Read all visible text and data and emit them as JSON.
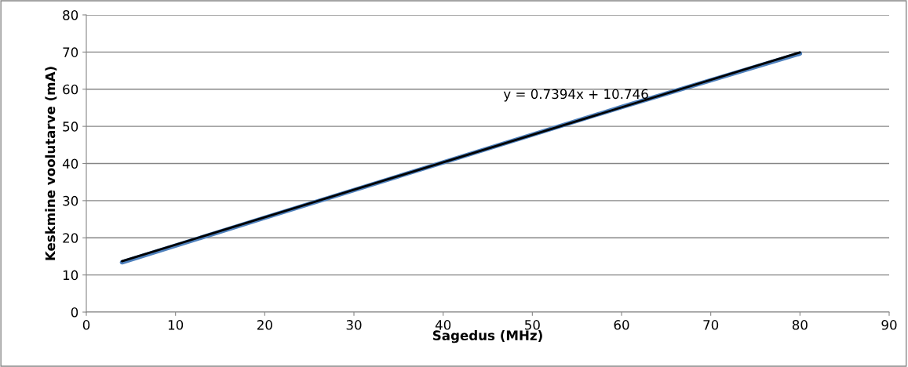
{
  "chart_data": {
    "type": "line",
    "xlabel": "Sagedus (MHz)",
    "ylabel": "Keskmine voolutarve (mA)",
    "series": [
      {
        "color": "#4f81bd",
        "x": [
          4,
          20,
          40,
          60,
          80
        ],
        "values": [
          13.4,
          25.4,
          40.3,
          55.2,
          69.6
        ]
      },
      {
        "type": "line",
        "color": "#000000",
        "x": [
          4,
          80
        ],
        "values": [
          13.7,
          69.9
        ]
      }
    ],
    "annotations": [
      "y = 0.7394x + 10.746"
    ],
    "xlim": [
      0,
      90
    ],
    "xticks": [
      0,
      10,
      20,
      30,
      40,
      50,
      60,
      70,
      80,
      90
    ],
    "ylim": [
      0,
      80
    ],
    "yticks": [
      0,
      10,
      20,
      30,
      40,
      50,
      60,
      70,
      80
    ],
    "grid": "y",
    "marker": "none",
    "line_style": "solid"
  }
}
